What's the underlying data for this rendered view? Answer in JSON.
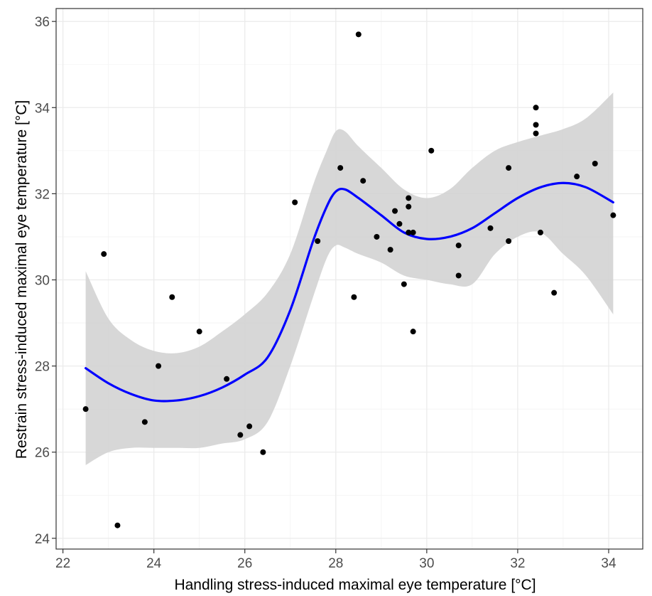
{
  "chart_data": {
    "type": "scatter",
    "title": "",
    "xlabel": "Handling stress-induced maximal eye temperature [°C]",
    "ylabel": "Restrain stress-induced maximal eye temperature [°C]",
    "xlim": [
      21.85,
      34.75
    ],
    "ylim": [
      23.75,
      36.3
    ],
    "x_ticks": [
      22,
      24,
      26,
      28,
      30,
      32,
      34
    ],
    "x_tick_labels": [
      "22",
      "24",
      "26",
      "28",
      "30",
      "32",
      "34"
    ],
    "y_ticks": [
      24,
      26,
      28,
      30,
      32,
      34,
      36
    ],
    "y_tick_labels": [
      "24",
      "26",
      "28",
      "30",
      "32",
      "34",
      "36"
    ],
    "grid": true,
    "legend": "none",
    "colors": {
      "points": "#000000",
      "smooth_line": "#0000ff",
      "confidence_band": "#d3d3d3",
      "grid": "#ebebeb",
      "panel_border": "#333333"
    },
    "points": [
      {
        "x": 22.5,
        "y": 27.0
      },
      {
        "x": 22.9,
        "y": 30.6
      },
      {
        "x": 23.2,
        "y": 24.3
      },
      {
        "x": 23.8,
        "y": 26.7
      },
      {
        "x": 24.1,
        "y": 28.0
      },
      {
        "x": 24.4,
        "y": 29.6
      },
      {
        "x": 25.0,
        "y": 28.8
      },
      {
        "x": 25.6,
        "y": 27.7
      },
      {
        "x": 25.9,
        "y": 26.4
      },
      {
        "x": 26.1,
        "y": 26.6
      },
      {
        "x": 26.4,
        "y": 26.0
      },
      {
        "x": 27.1,
        "y": 31.8
      },
      {
        "x": 27.6,
        "y": 30.9
      },
      {
        "x": 28.1,
        "y": 32.6
      },
      {
        "x": 28.4,
        "y": 29.6
      },
      {
        "x": 28.5,
        "y": 35.7
      },
      {
        "x": 28.6,
        "y": 32.3
      },
      {
        "x": 28.9,
        "y": 31.0
      },
      {
        "x": 29.2,
        "y": 30.7
      },
      {
        "x": 29.3,
        "y": 31.6
      },
      {
        "x": 29.4,
        "y": 31.3
      },
      {
        "x": 29.5,
        "y": 29.9
      },
      {
        "x": 29.6,
        "y": 31.9
      },
      {
        "x": 29.6,
        "y": 31.7
      },
      {
        "x": 29.6,
        "y": 31.1
      },
      {
        "x": 29.7,
        "y": 31.1
      },
      {
        "x": 29.7,
        "y": 28.8
      },
      {
        "x": 30.1,
        "y": 33.0
      },
      {
        "x": 30.7,
        "y": 30.8
      },
      {
        "x": 30.7,
        "y": 30.1
      },
      {
        "x": 31.4,
        "y": 31.2
      },
      {
        "x": 31.8,
        "y": 32.6
      },
      {
        "x": 31.8,
        "y": 30.9
      },
      {
        "x": 32.4,
        "y": 34.0
      },
      {
        "x": 32.4,
        "y": 33.6
      },
      {
        "x": 32.4,
        "y": 33.4
      },
      {
        "x": 32.5,
        "y": 31.1
      },
      {
        "x": 32.8,
        "y": 29.7
      },
      {
        "x": 33.3,
        "y": 32.4
      },
      {
        "x": 33.7,
        "y": 32.7
      },
      {
        "x": 34.1,
        "y": 31.5
      }
    ],
    "smooth": {
      "x": [
        22.5,
        23.0,
        23.5,
        24.0,
        24.5,
        25.0,
        25.5,
        26.0,
        26.5,
        27.0,
        27.5,
        27.8,
        28.0,
        28.2,
        28.5,
        29.0,
        29.5,
        30.0,
        30.5,
        31.0,
        31.5,
        32.0,
        32.5,
        33.0,
        33.5,
        34.1
      ],
      "y": [
        27.95,
        27.6,
        27.35,
        27.2,
        27.2,
        27.3,
        27.5,
        27.8,
        28.2,
        29.3,
        30.9,
        31.7,
        32.05,
        32.1,
        31.9,
        31.5,
        31.1,
        30.95,
        31.0,
        31.2,
        31.55,
        31.9,
        32.15,
        32.25,
        32.15,
        31.8
      ],
      "lower": [
        25.7,
        26.0,
        26.1,
        26.1,
        26.1,
        26.1,
        26.2,
        26.3,
        26.7,
        28.0,
        29.6,
        30.5,
        30.8,
        30.75,
        30.6,
        30.4,
        30.1,
        30.0,
        29.9,
        29.9,
        30.6,
        31.0,
        31.1,
        30.6,
        30.1,
        29.2
      ],
      "upper": [
        30.2,
        29.1,
        28.6,
        28.35,
        28.3,
        28.45,
        28.8,
        29.2,
        29.7,
        30.6,
        32.2,
        33.0,
        33.45,
        33.45,
        33.1,
        32.6,
        32.1,
        31.9,
        32.1,
        32.6,
        33.0,
        33.2,
        33.35,
        33.5,
        33.75,
        34.35
      ]
    }
  }
}
